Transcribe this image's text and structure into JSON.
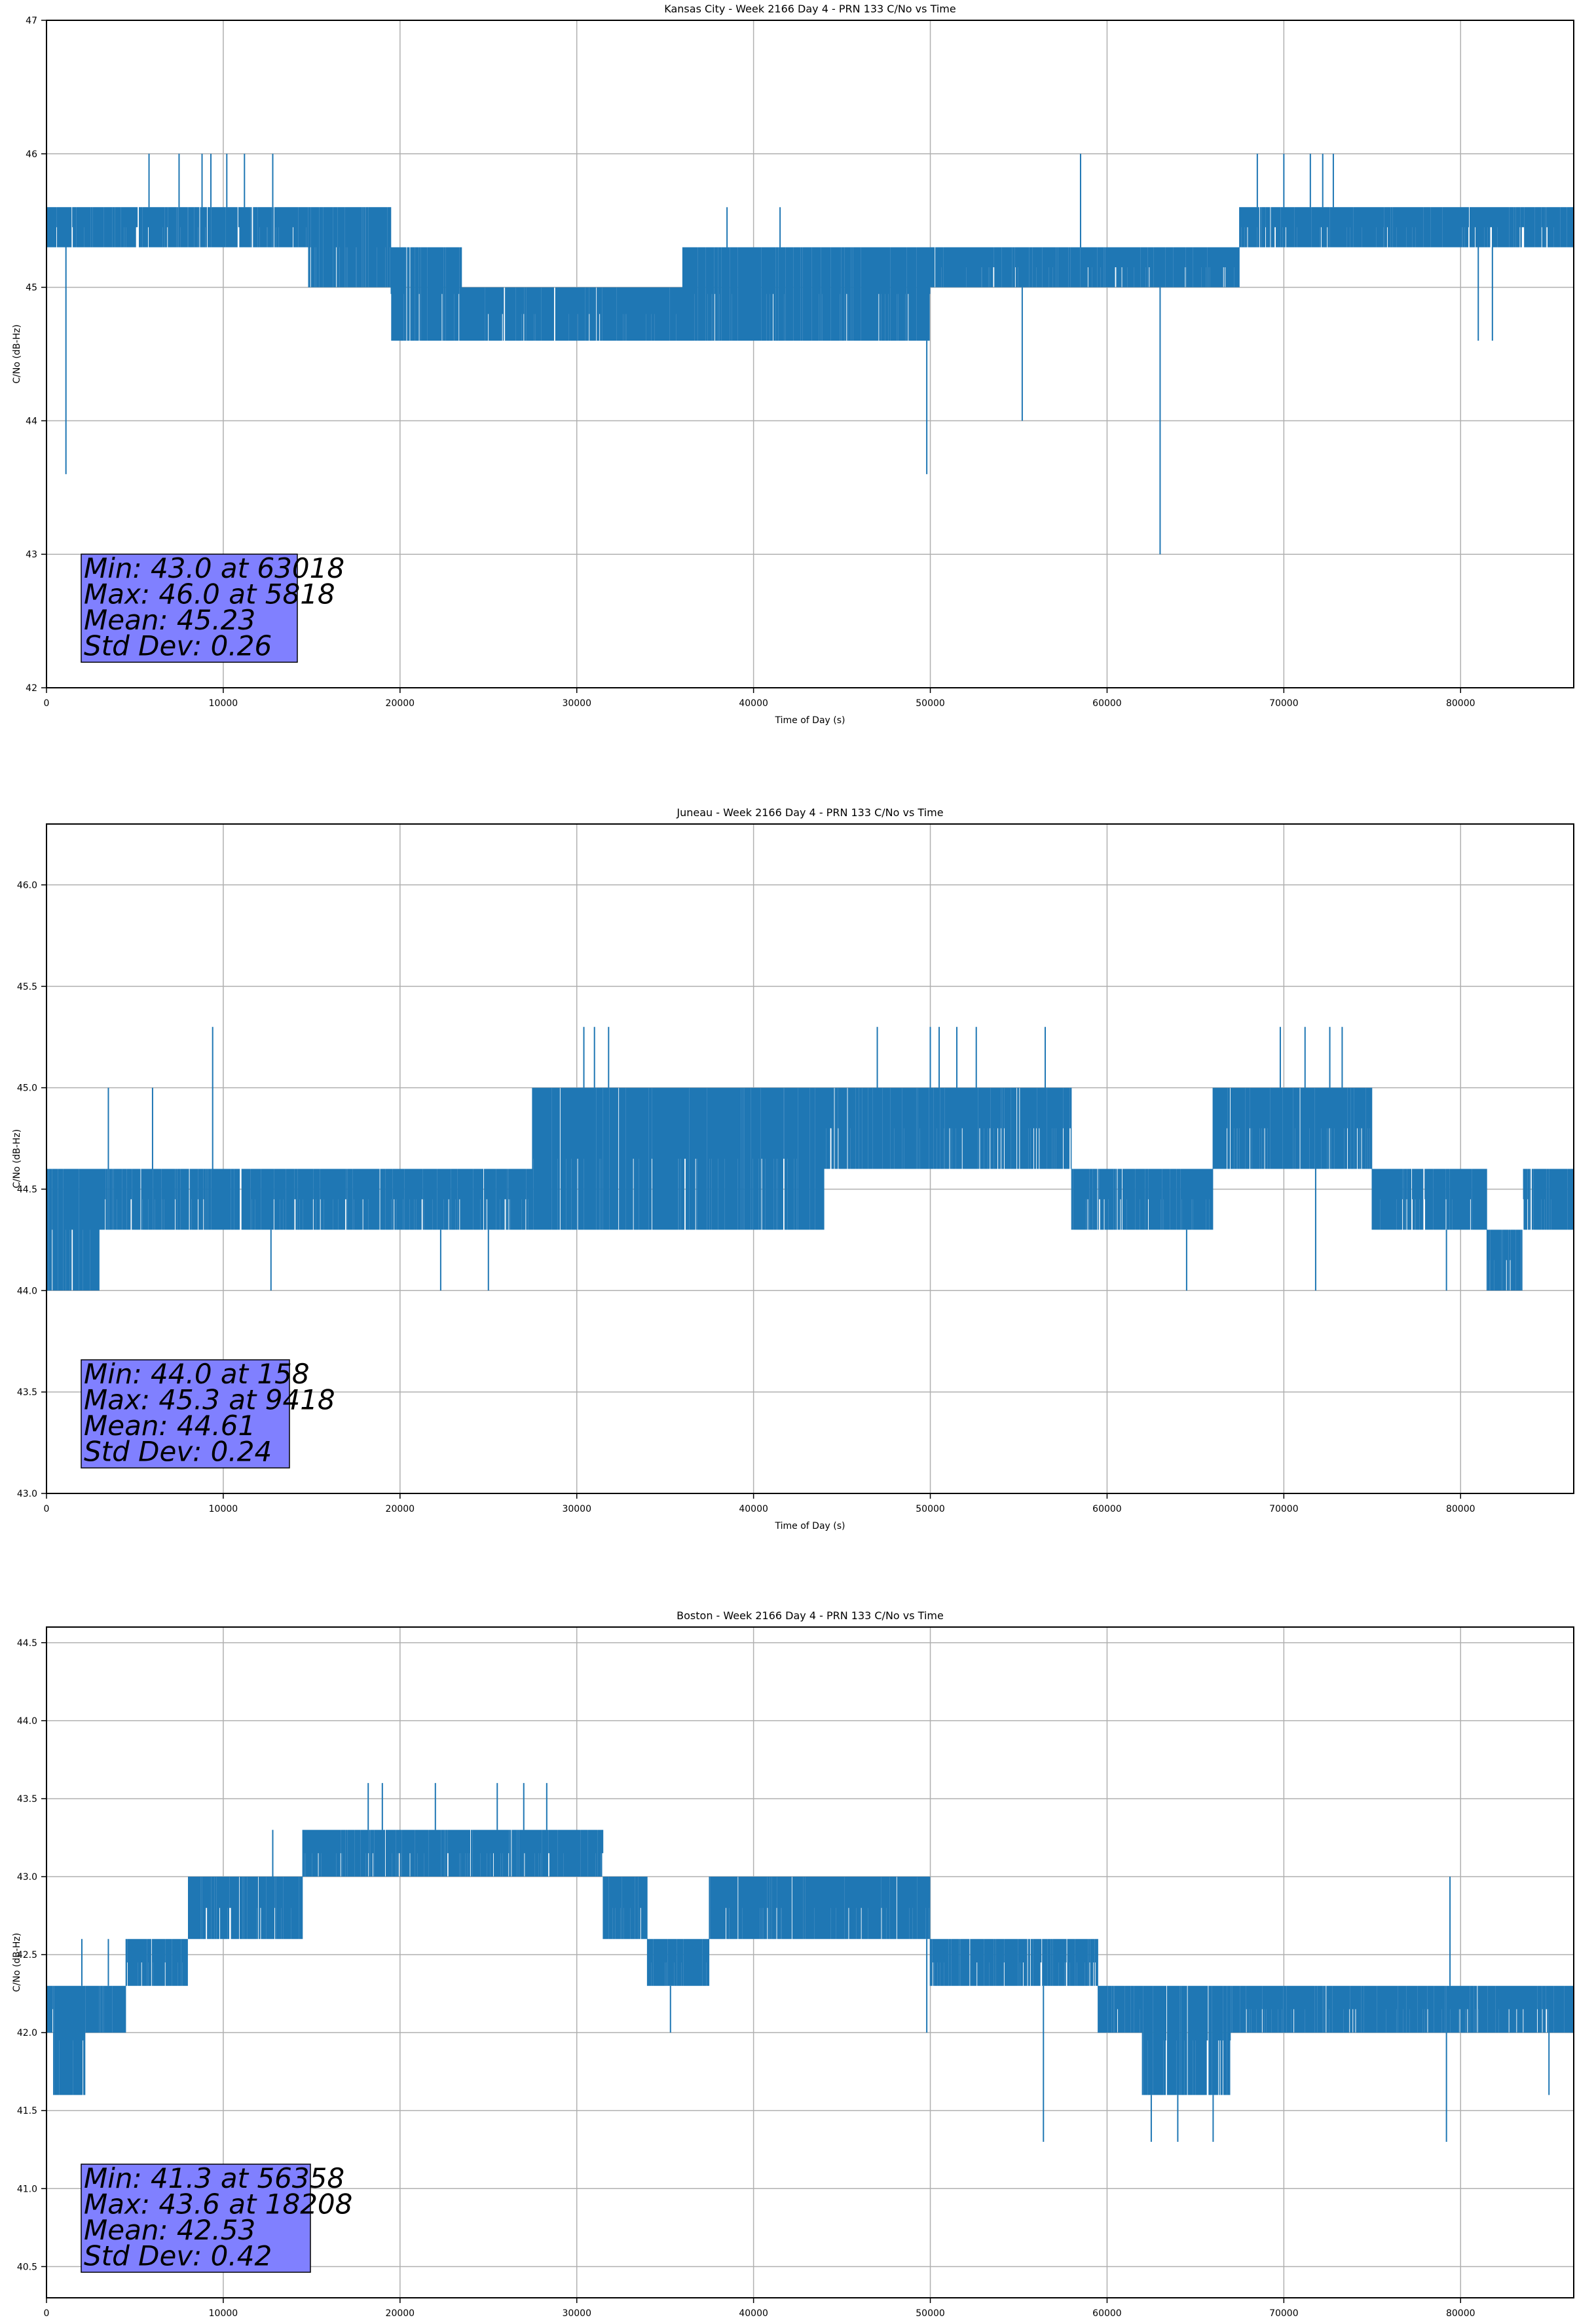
{
  "chart_data": [
    {
      "type": "line",
      "title": "Kansas City - Week 2166 Day 4 - PRN 133 C/No vs Time",
      "xlabel": "Time of Day (s)",
      "ylabel": "C/No (dB-Hz)",
      "xlim": [
        0,
        86400
      ],
      "ylim": [
        42,
        47
      ],
      "xticks": [
        0,
        10000,
        20000,
        30000,
        40000,
        50000,
        60000,
        70000,
        80000
      ],
      "yticks": [
        42,
        43,
        44,
        45,
        46,
        47
      ],
      "ytick_labels": [
        "42",
        "43",
        "44",
        "45",
        "46",
        "47"
      ],
      "grid": true,
      "color": "#1f77b4",
      "stats": [
        "Min: 43.0 at 63018",
        "Max: 46.0 at 5818",
        "Mean: 45.23",
        "Std Dev: 0.26"
      ],
      "segments": [
        {
          "x": [
            0,
            14800
          ],
          "y": [
            45.3,
            45.6
          ]
        },
        {
          "x": [
            14800,
            19500
          ],
          "y": [
            45.0,
            45.6
          ]
        },
        {
          "x": [
            19500,
            23500
          ],
          "y": [
            44.6,
            45.3
          ]
        },
        {
          "x": [
            23500,
            36000
          ],
          "y": [
            44.6,
            45.0
          ]
        },
        {
          "x": [
            36000,
            43000
          ],
          "y": [
            44.6,
            45.3
          ]
        },
        {
          "x": [
            43000,
            50000
          ],
          "y": [
            44.6,
            45.3
          ]
        },
        {
          "x": [
            50000,
            59000
          ],
          "y": [
            45.0,
            45.3
          ]
        },
        {
          "x": [
            59000,
            67500
          ],
          "y": [
            45.0,
            45.3
          ]
        },
        {
          "x": [
            67500,
            73000
          ],
          "y": [
            45.3,
            45.6
          ]
        },
        {
          "x": [
            73000,
            86400
          ],
          "y": [
            45.3,
            45.6
          ]
        }
      ],
      "spikes": [
        {
          "x": 1100,
          "y": 43.6
        },
        {
          "x": 5800,
          "y": 46.0
        },
        {
          "x": 7500,
          "y": 46.0
        },
        {
          "x": 8800,
          "y": 46.0
        },
        {
          "x": 9300,
          "y": 46.0
        },
        {
          "x": 10200,
          "y": 46.0
        },
        {
          "x": 11200,
          "y": 46.0
        },
        {
          "x": 12800,
          "y": 46.0
        },
        {
          "x": 38500,
          "y": 45.6
        },
        {
          "x": 41500,
          "y": 45.6
        },
        {
          "x": 49800,
          "y": 43.6
        },
        {
          "x": 55200,
          "y": 44.0
        },
        {
          "x": 58500,
          "y": 46.0
        },
        {
          "x": 63000,
          "y": 43.0
        },
        {
          "x": 68500,
          "y": 46.0
        },
        {
          "x": 70000,
          "y": 46.0
        },
        {
          "x": 71500,
          "y": 46.0
        },
        {
          "x": 72200,
          "y": 46.0
        },
        {
          "x": 72800,
          "y": 46.0
        },
        {
          "x": 81000,
          "y": 44.6
        },
        {
          "x": 81800,
          "y": 44.6
        }
      ]
    },
    {
      "type": "line",
      "title": "Juneau - Week 2166 Day 4 - PRN 133 C/No vs Time",
      "xlabel": "Time of Day (s)",
      "ylabel": "C/No (dB-Hz)",
      "xlim": [
        0,
        86400
      ],
      "ylim": [
        43.0,
        46.3
      ],
      "xticks": [
        0,
        10000,
        20000,
        30000,
        40000,
        50000,
        60000,
        70000,
        80000
      ],
      "yticks": [
        43.0,
        43.5,
        44.0,
        44.5,
        45.0,
        45.5,
        46.0
      ],
      "ytick_labels": [
        "43.0",
        "43.5",
        "44.0",
        "44.5",
        "45.0",
        "45.5",
        "46.0"
      ],
      "grid": true,
      "color": "#1f77b4",
      "stats": [
        "Min: 44.0 at 158",
        "Max: 45.3 at 9418",
        "Mean: 44.61",
        "Std Dev: 0.24"
      ],
      "segments": [
        {
          "x": [
            0,
            3000
          ],
          "y": [
            44.0,
            44.6
          ]
        },
        {
          "x": [
            3000,
            21500
          ],
          "y": [
            44.3,
            44.6
          ]
        },
        {
          "x": [
            21500,
            27500
          ],
          "y": [
            44.3,
            44.6
          ]
        },
        {
          "x": [
            27500,
            36000
          ],
          "y": [
            44.3,
            45.0
          ]
        },
        {
          "x": [
            36000,
            44000
          ],
          "y": [
            44.3,
            45.0
          ]
        },
        {
          "x": [
            44000,
            58000
          ],
          "y": [
            44.6,
            45.0
          ]
        },
        {
          "x": [
            58000,
            66000
          ],
          "y": [
            44.3,
            44.6
          ]
        },
        {
          "x": [
            66000,
            75000
          ],
          "y": [
            44.6,
            45.0
          ]
        },
        {
          "x": [
            75000,
            81500
          ],
          "y": [
            44.3,
            44.6
          ]
        },
        {
          "x": [
            81500,
            83500
          ],
          "y": [
            44.0,
            44.3
          ]
        },
        {
          "x": [
            83500,
            86400
          ],
          "y": [
            44.3,
            44.6
          ]
        }
      ],
      "spikes": [
        {
          "x": 3500,
          "y": 45.0
        },
        {
          "x": 6000,
          "y": 45.0
        },
        {
          "x": 9400,
          "y": 45.3
        },
        {
          "x": 12700,
          "y": 44.0
        },
        {
          "x": 22300,
          "y": 44.0
        },
        {
          "x": 25000,
          "y": 44.0
        },
        {
          "x": 30400,
          "y": 45.3
        },
        {
          "x": 31000,
          "y": 45.3
        },
        {
          "x": 31800,
          "y": 45.3
        },
        {
          "x": 47000,
          "y": 45.3
        },
        {
          "x": 50000,
          "y": 45.3
        },
        {
          "x": 50500,
          "y": 45.3
        },
        {
          "x": 51500,
          "y": 45.3
        },
        {
          "x": 52600,
          "y": 45.3
        },
        {
          "x": 56500,
          "y": 45.3
        },
        {
          "x": 64500,
          "y": 44.0
        },
        {
          "x": 69800,
          "y": 45.3
        },
        {
          "x": 71200,
          "y": 45.3
        },
        {
          "x": 72600,
          "y": 45.3
        },
        {
          "x": 73300,
          "y": 45.3
        },
        {
          "x": 71800,
          "y": 44.0
        },
        {
          "x": 79200,
          "y": 44.0
        }
      ]
    },
    {
      "type": "line",
      "title": "Boston - Week 2166 Day 4 - PRN 133 C/No vs Time",
      "xlabel": "Time of Day (s)",
      "ylabel": "C/No (dB-Hz)",
      "xlim": [
        0,
        86400
      ],
      "ylim": [
        40.3,
        44.6
      ],
      "xticks": [
        0,
        10000,
        20000,
        30000,
        40000,
        50000,
        60000,
        70000,
        80000
      ],
      "yticks": [
        40.5,
        41.0,
        41.5,
        42.0,
        42.5,
        43.0,
        43.5,
        44.0,
        44.5
      ],
      "ytick_labels": [
        "40.5",
        "41.0",
        "41.5",
        "42.0",
        "42.5",
        "43.0",
        "43.5",
        "44.0",
        "44.5"
      ],
      "grid": true,
      "color": "#1f77b4",
      "stats": [
        "Min: 41.3 at 56358",
        "Max: 43.6 at 18208",
        "Mean: 42.53",
        "Std Dev: 0.42"
      ],
      "segments": [
        {
          "x": [
            0,
            400
          ],
          "y": [
            42.0,
            42.3
          ]
        },
        {
          "x": [
            400,
            2200
          ],
          "y": [
            41.6,
            42.3
          ]
        },
        {
          "x": [
            2200,
            4500
          ],
          "y": [
            42.0,
            42.3
          ]
        },
        {
          "x": [
            4500,
            8000
          ],
          "y": [
            42.3,
            42.6
          ]
        },
        {
          "x": [
            8000,
            14500
          ],
          "y": [
            42.6,
            43.0
          ]
        },
        {
          "x": [
            14500,
            31500
          ],
          "y": [
            43.0,
            43.3
          ]
        },
        {
          "x": [
            31500,
            34000
          ],
          "y": [
            42.6,
            43.0
          ]
        },
        {
          "x": [
            34000,
            37500
          ],
          "y": [
            42.3,
            42.6
          ]
        },
        {
          "x": [
            37500,
            50000
          ],
          "y": [
            42.6,
            43.0
          ]
        },
        {
          "x": [
            50000,
            59500
          ],
          "y": [
            42.3,
            42.6
          ]
        },
        {
          "x": [
            59500,
            62000
          ],
          "y": [
            42.0,
            42.3
          ]
        },
        {
          "x": [
            62000,
            67000
          ],
          "y": [
            41.6,
            42.3
          ]
        },
        {
          "x": [
            67000,
            86400
          ],
          "y": [
            42.0,
            42.3
          ]
        }
      ],
      "spikes": [
        {
          "x": 2000,
          "y": 42.6
        },
        {
          "x": 3500,
          "y": 42.6
        },
        {
          "x": 12800,
          "y": 43.3
        },
        {
          "x": 18200,
          "y": 43.6
        },
        {
          "x": 19000,
          "y": 43.6
        },
        {
          "x": 22000,
          "y": 43.6
        },
        {
          "x": 25500,
          "y": 43.6
        },
        {
          "x": 27000,
          "y": 43.6
        },
        {
          "x": 28300,
          "y": 43.6
        },
        {
          "x": 35300,
          "y": 42.0
        },
        {
          "x": 49800,
          "y": 42.0
        },
        {
          "x": 56400,
          "y": 41.3
        },
        {
          "x": 62500,
          "y": 41.3
        },
        {
          "x": 64000,
          "y": 41.3
        },
        {
          "x": 66000,
          "y": 41.3
        },
        {
          "x": 79200,
          "y": 41.3
        },
        {
          "x": 79400,
          "y": 43.0
        },
        {
          "x": 85000,
          "y": 41.6
        }
      ]
    }
  ]
}
